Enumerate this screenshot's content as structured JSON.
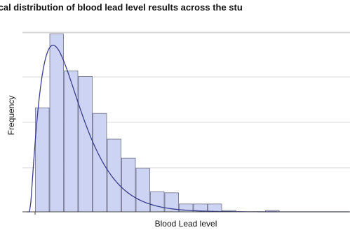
{
  "chart_data": {
    "type": "bar",
    "title": "ical distribution of blood lead level results across the stu",
    "xlabel": "Blood Lead level",
    "ylabel": "Frequency",
    "bins": 21,
    "values": [
      0.465,
      0.795,
      0.63,
      0.605,
      0.44,
      0.325,
      0.24,
      0.195,
      0.09,
      0.085,
      0.035,
      0.035,
      0.035,
      0.006,
      0,
      0,
      0.006,
      0,
      0,
      0,
      0
    ],
    "curve": {
      "label": "fitted density",
      "shape": "right-skewed",
      "peak_bin": 1.6,
      "peak_value": 0.745
    },
    "ylim": [
      0,
      0.8
    ],
    "grid": true,
    "gridlines": 5,
    "bar_color": "#ccd3f3",
    "bar_edge_color": "#6b6e87",
    "curve_color": "#3a3e8c",
    "grid_color": "#d9d9d9"
  }
}
